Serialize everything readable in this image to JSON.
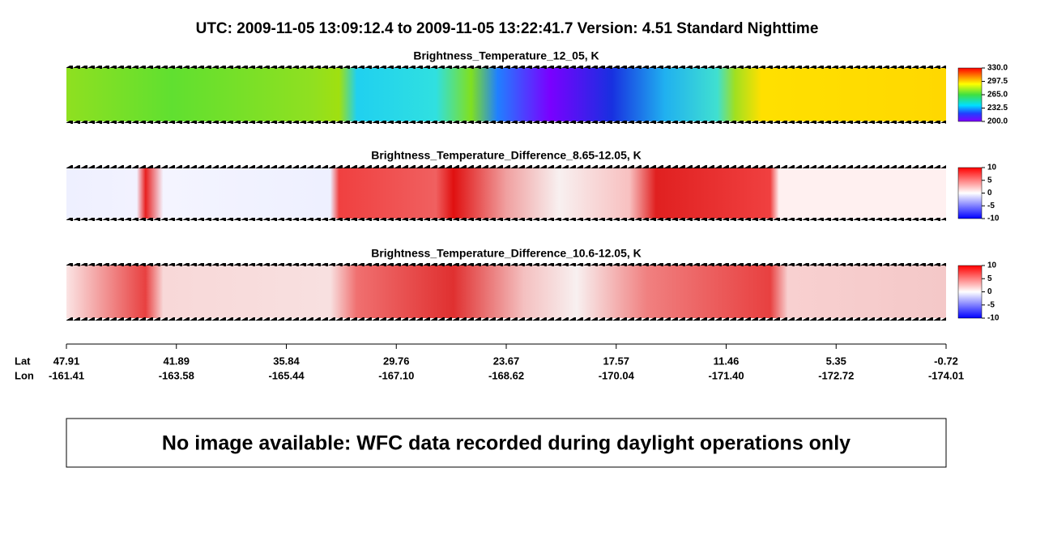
{
  "title": "UTC:  2009-11-05   13:09:12.4  to  2009-11-05   13:22:41.7    Version: 4.51  Standard Nighttime",
  "panels": [
    {
      "title": "Brightness_Temperature_12_05, K",
      "clim": [
        200,
        330
      ],
      "cticks": [
        {
          "value": 330,
          "label": "330.0"
        },
        {
          "value": 297.5,
          "label": "297.5"
        },
        {
          "value": 265,
          "label": "265.0"
        },
        {
          "value": 232.5,
          "label": "232.5"
        },
        {
          "value": 200,
          "label": "200.0"
        }
      ]
    },
    {
      "title": "Brightness_Temperature_Difference_8.65-12.05, K",
      "clim": [
        -10,
        10
      ],
      "cticks": [
        10,
        5,
        0,
        -5,
        -10
      ]
    },
    {
      "title": "Brightness_Temperature_Difference_10.6-12.05, K",
      "clim": [
        -10,
        10
      ],
      "cticks": [
        10,
        5,
        0,
        -5,
        -10
      ]
    }
  ],
  "track": {
    "lat_label": "Lat",
    "lon_label": "Lon",
    "lat": [
      47.91,
      41.89,
      35.84,
      29.76,
      23.67,
      17.57,
      11.46,
      5.35,
      -0.72
    ],
    "lon": [
      -161.41,
      -163.58,
      -165.44,
      {
        "value": -167.1,
        "label": "-167.10"
      },
      -168.62,
      -170.04,
      {
        "value": -171.4,
        "label": "-171.40"
      },
      -172.72,
      -174.01
    ]
  },
  "notice": "No image available: WFC data recorded during daylight operations only"
}
